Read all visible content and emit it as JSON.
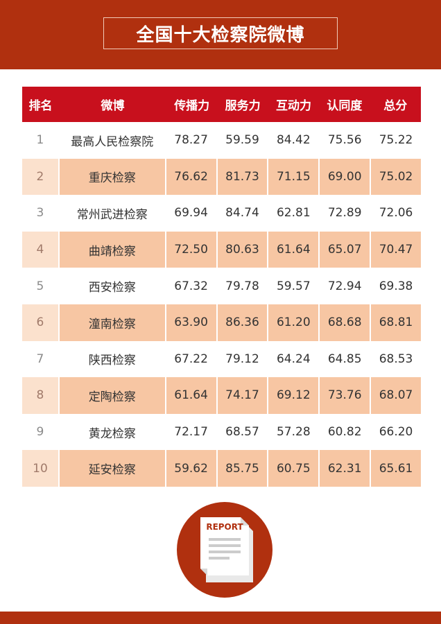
{
  "header": {
    "title": "全国十大检察院微博"
  },
  "table": {
    "columns": [
      "排名",
      "微博",
      "传播力",
      "服务力",
      "互动力",
      "认同度",
      "总分"
    ],
    "rows": [
      [
        "1",
        "最高人民检察院",
        "78.27",
        "59.59",
        "84.42",
        "75.56",
        "75.22"
      ],
      [
        "2",
        "重庆检察",
        "76.62",
        "81.73",
        "71.15",
        "69.00",
        "75.02"
      ],
      [
        "3",
        "常州武进检察",
        "69.94",
        "84.74",
        "62.81",
        "72.89",
        "72.06"
      ],
      [
        "4",
        "曲靖检察",
        "72.50",
        "80.63",
        "61.64",
        "65.07",
        "70.47"
      ],
      [
        "5",
        "西安检察",
        "67.32",
        "79.78",
        "59.57",
        "72.94",
        "69.38"
      ],
      [
        "6",
        "潼南检察",
        "63.90",
        "86.36",
        "61.20",
        "68.68",
        "68.81"
      ],
      [
        "7",
        "陕西检察",
        "67.22",
        "79.12",
        "64.24",
        "64.85",
        "68.53"
      ],
      [
        "8",
        "定陶检察",
        "61.64",
        "74.17",
        "69.12",
        "73.76",
        "68.07"
      ],
      [
        "9",
        "黄龙检察",
        "72.17",
        "68.57",
        "57.28",
        "60.82",
        "66.20"
      ],
      [
        "10",
        "延安检察",
        "59.62",
        "85.75",
        "60.75",
        "62.31",
        "65.61"
      ]
    ]
  },
  "report": {
    "label": "REPORT",
    "icon": "report-document-icon"
  },
  "colors": {
    "brand_red": "#b0300f",
    "header_row_red": "#c8101d",
    "row_shade": "#f7c6a3"
  }
}
